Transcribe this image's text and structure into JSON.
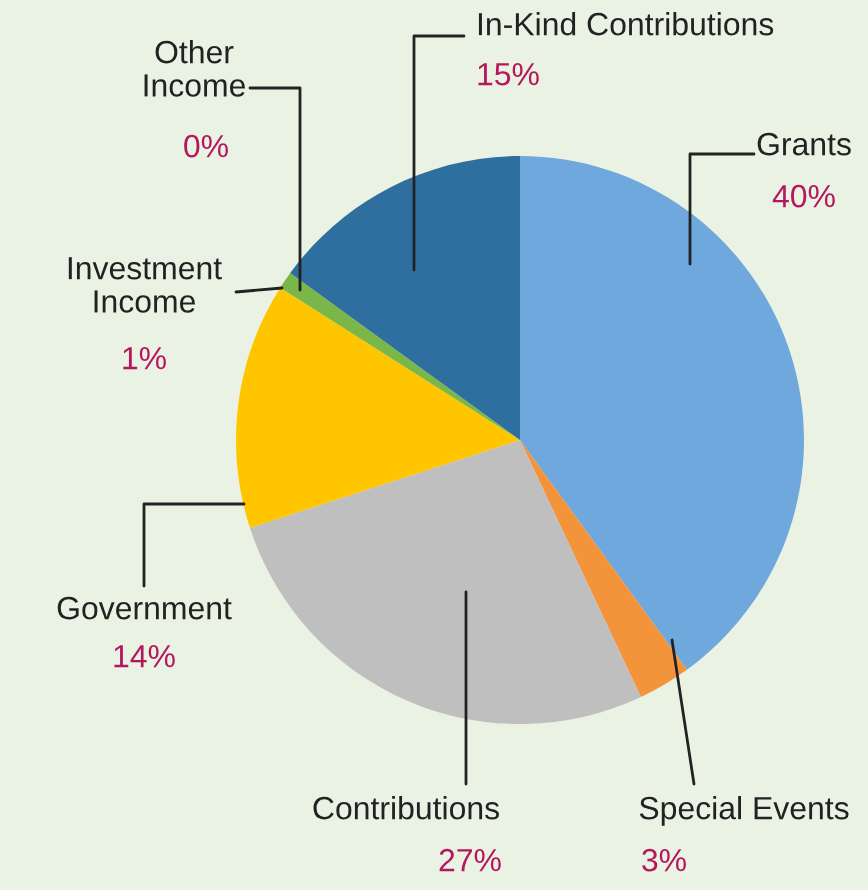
{
  "chart_data": {
    "type": "pie",
    "categories": [
      "Grants",
      "Special Events",
      "Contributions",
      "Government",
      "Investment Income",
      "Other Income",
      "In-Kind Contributions"
    ],
    "values": [
      40,
      3,
      27,
      14,
      1,
      0,
      15
    ],
    "colors": [
      "#6fa8dc",
      "#f4943a",
      "#bfbfbf",
      "#ffc600",
      "#7ab648",
      "#5a3e8c",
      "#2e6fa0"
    ],
    "value_labels": [
      "40%",
      "3%",
      "27%",
      "14%",
      "1%",
      "0%",
      "15%"
    ]
  }
}
